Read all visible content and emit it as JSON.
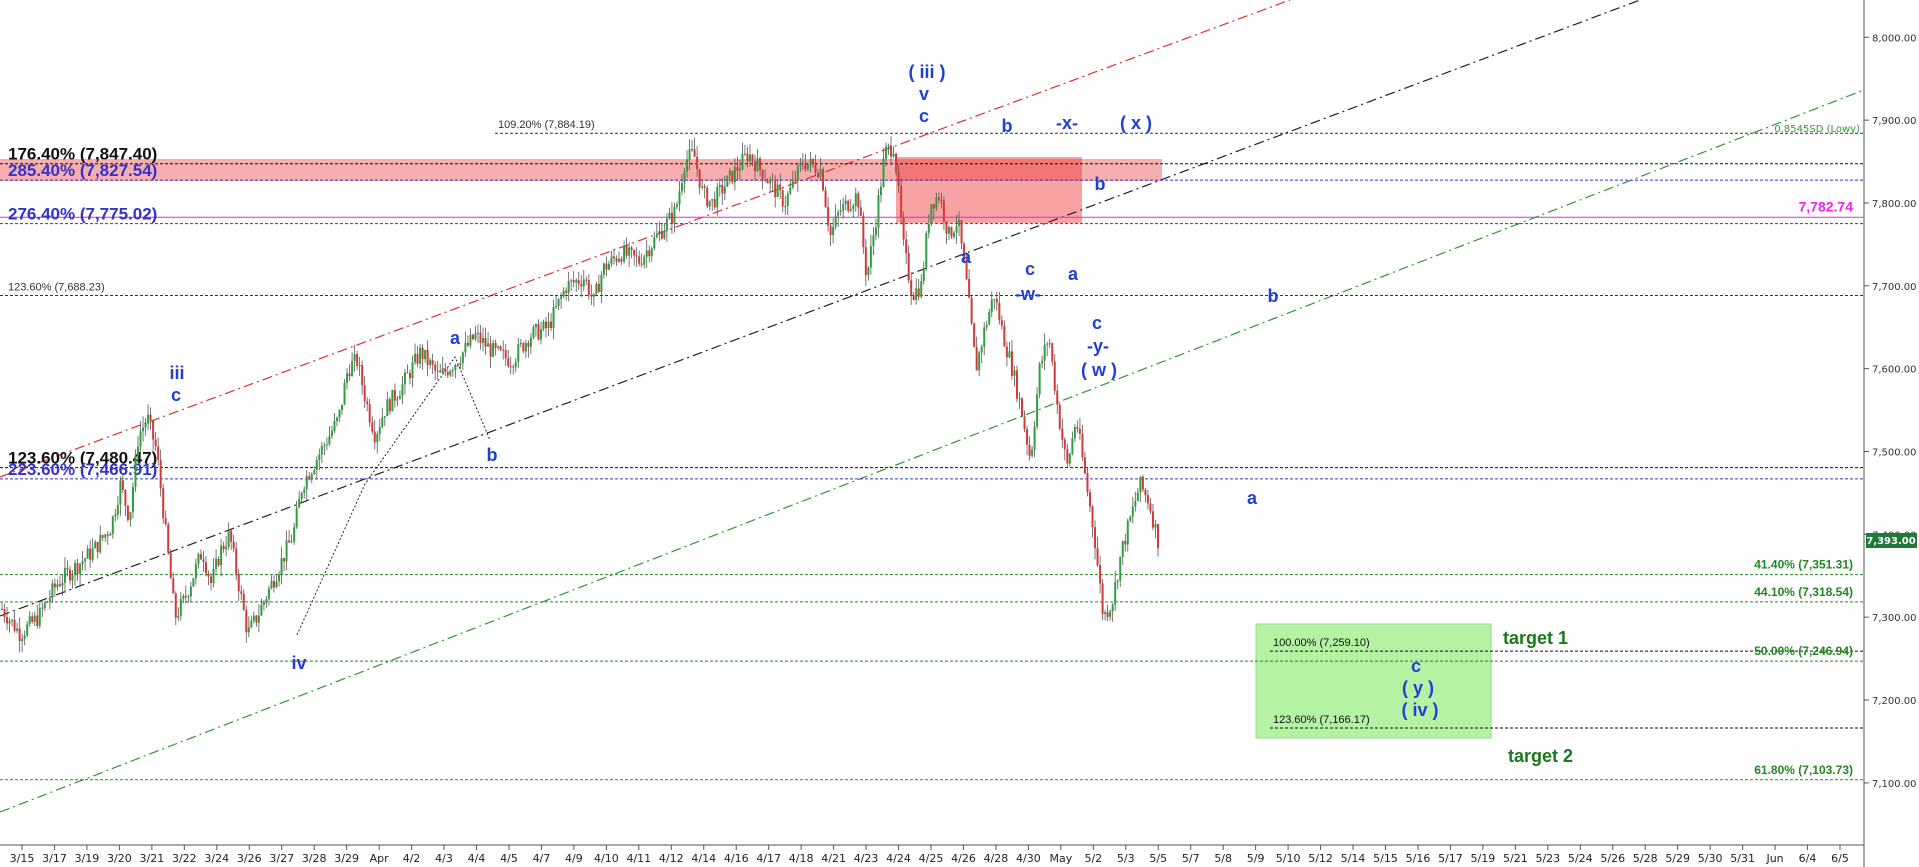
{
  "chart_data": {
    "type": "candlestick",
    "x_range": [
      "3/15",
      "6/5"
    ],
    "y_range": [
      7025,
      8045
    ],
    "y_ticks": [
      "7,100.00",
      "7,200.00",
      "7,300.00",
      "7,400.00",
      "7,500.00",
      "7,600.00",
      "7,700.00",
      "7,800.00",
      "7,900.00",
      "8,000.00"
    ],
    "y_tick_values": [
      7100,
      7200,
      7300,
      7400,
      7500,
      7600,
      7700,
      7800,
      7900,
      8000
    ],
    "x_tick_labels": [
      "3/15",
      "3/17",
      "3/19",
      "3/20",
      "3/21",
      "3/22",
      "3/24",
      "3/26",
      "3/27",
      "3/28",
      "3/29",
      "Apr",
      "4/2",
      "4/3",
      "4/4",
      "4/5",
      "4/7",
      "4/9",
      "4/10",
      "4/11",
      "4/12",
      "4/14",
      "4/16",
      "4/17",
      "4/18",
      "4/21",
      "4/23",
      "4/24",
      "4/25",
      "4/26",
      "4/28",
      "4/30",
      "May",
      "5/2",
      "5/3",
      "5/5",
      "5/7",
      "5/8",
      "5/9",
      "5/10",
      "5/12",
      "5/14",
      "5/15",
      "5/16",
      "5/17",
      "5/19",
      "5/21",
      "5/23",
      "5/24",
      "5/26",
      "5/28",
      "5/29",
      "5/30",
      "5/31",
      "Jun",
      "6/4",
      "6/5"
    ],
    "last_price_label": "7,393.00",
    "last_price": 7393,
    "price_path": [
      [
        0,
        7310
      ],
      [
        2,
        7280
      ],
      [
        4,
        7300
      ],
      [
        6,
        7340
      ],
      [
        8,
        7360
      ],
      [
        10,
        7380
      ],
      [
        12,
        7410
      ],
      [
        13,
        7460
      ],
      [
        14,
        7420
      ],
      [
        15,
        7520
      ],
      [
        16,
        7540
      ],
      [
        17,
        7500
      ],
      [
        18,
        7400
      ],
      [
        19,
        7300
      ],
      [
        20,
        7320
      ],
      [
        21,
        7350
      ],
      [
        22,
        7380
      ],
      [
        23,
        7340
      ],
      [
        24,
        7380
      ],
      [
        25,
        7400
      ],
      [
        26,
        7340
      ],
      [
        27,
        7280
      ],
      [
        28,
        7300
      ],
      [
        30,
        7350
      ],
      [
        32,
        7400
      ],
      [
        33,
        7460
      ],
      [
        35,
        7500
      ],
      [
        37,
        7540
      ],
      [
        38,
        7600
      ],
      [
        39,
        7610
      ],
      [
        40,
        7560
      ],
      [
        41,
        7520
      ],
      [
        42,
        7550
      ],
      [
        44,
        7580
      ],
      [
        46,
        7620
      ],
      [
        48,
        7590
      ],
      [
        50,
        7610
      ],
      [
        52,
        7640
      ],
      [
        54,
        7620
      ],
      [
        56,
        7610
      ],
      [
        58,
        7640
      ],
      [
        60,
        7650
      ],
      [
        62,
        7700
      ],
      [
        64,
        7710
      ],
      [
        65,
        7680
      ],
      [
        66,
        7720
      ],
      [
        68,
        7740
      ],
      [
        70,
        7730
      ],
      [
        72,
        7760
      ],
      [
        74,
        7790
      ],
      [
        75,
        7850
      ],
      [
        76,
        7860
      ],
      [
        77,
        7810
      ],
      [
        78,
        7800
      ],
      [
        80,
        7830
      ],
      [
        82,
        7860
      ],
      [
        84,
        7830
      ],
      [
        86,
        7800
      ],
      [
        88,
        7850
      ],
      [
        90,
        7840
      ],
      [
        91,
        7760
      ],
      [
        92,
        7790
      ],
      [
        94,
        7810
      ],
      [
        95,
        7710
      ],
      [
        96,
        7780
      ],
      [
        97,
        7860
      ],
      [
        98,
        7870
      ],
      [
        99,
        7750
      ],
      [
        100,
        7690
      ],
      [
        101,
        7700
      ],
      [
        102,
        7800
      ],
      [
        103,
        7810
      ],
      [
        104,
        7760
      ],
      [
        105,
        7780
      ],
      [
        106,
        7700
      ],
      [
        107,
        7600
      ],
      [
        108,
        7650
      ],
      [
        109,
        7690
      ],
      [
        110,
        7640
      ],
      [
        111,
        7600
      ],
      [
        112,
        7550
      ],
      [
        113,
        7490
      ],
      [
        114,
        7600
      ],
      [
        115,
        7640
      ],
      [
        116,
        7550
      ],
      [
        117,
        7480
      ],
      [
        118,
        7540
      ],
      [
        120,
        7400
      ],
      [
        121,
        7300
      ],
      [
        122,
        7320
      ],
      [
        123,
        7380
      ],
      [
        124,
        7420
      ],
      [
        125,
        7460
      ],
      [
        126,
        7440
      ],
      [
        127,
        7393
      ]
    ],
    "horizontal_levels": [
      {
        "label": "109.20% (7,884.19)",
        "value": 7884.19,
        "color": "#333333",
        "style": "dotted"
      },
      {
        "label": "176.40% (7,847.40)",
        "value": 7847.4,
        "color": "#111111",
        "style": "dotted"
      },
      {
        "label": "285.40% (7,827.54)",
        "value": 7827.54,
        "color": "#3333cc",
        "style": "dotted"
      },
      {
        "label": "7,782.74",
        "value": 7782.74,
        "color": "#ee22ee",
        "style": "solid"
      },
      {
        "label": "276.40% (7,775.02)",
        "value": 7775.02,
        "color": "#3333cc",
        "style": "dotted"
      },
      {
        "label": "123.60% (7,688.23)",
        "value": 7688.23,
        "color": "#333333",
        "style": "dotted"
      },
      {
        "label": "123.60% (7,480.47)",
        "value": 7480.47,
        "color": "#111111",
        "style": "dotted"
      },
      {
        "label": "223.60% (7,466.91)",
        "value": 7466.91,
        "color": "#3333cc",
        "style": "dotted"
      },
      {
        "label": "41.40% (7,351.31)",
        "value": 7351.31,
        "color": "#228822",
        "style": "dotted"
      },
      {
        "label": "44.10% (7,318.54)",
        "value": 7318.54,
        "color": "#228822",
        "style": "dotted"
      },
      {
        "label": "100.00% (7,259.10)",
        "value": 7259.1,
        "color": "#111111",
        "style": "dotted"
      },
      {
        "label": "50.00% (7,246.94)",
        "value": 7246.94,
        "color": "#228822",
        "style": "dotted"
      },
      {
        "label": "123.60% (7,166.17)",
        "value": 7166.17,
        "color": "#111111",
        "style": "dotted"
      },
      {
        "label": "61.80% (7,103.73)",
        "value": 7103.73,
        "color": "#228822",
        "style": "dotted"
      }
    ],
    "annotations": {
      "top_iii": [
        "( iii )",
        "v",
        "c"
      ],
      "left_iii": [
        "iii",
        "c"
      ],
      "iv": "iv",
      "a1": "a",
      "b1": "b",
      "b_top": "b",
      "x_top": "-x-",
      "x_paren": "( x )",
      "a_low": "a",
      "c_w": [
        "c",
        "-w-"
      ],
      "b_mid": "b",
      "a_mid": "a",
      "c_y_w": [
        "c",
        "-y-",
        "( w )"
      ],
      "b_right": "b",
      "a_right": "a",
      "c_y_iv": [
        "c",
        "( y )",
        "( iv )"
      ],
      "target1": "target 1",
      "target2": "target 2",
      "sd_label": "0.8545SD (Lowy)"
    }
  }
}
